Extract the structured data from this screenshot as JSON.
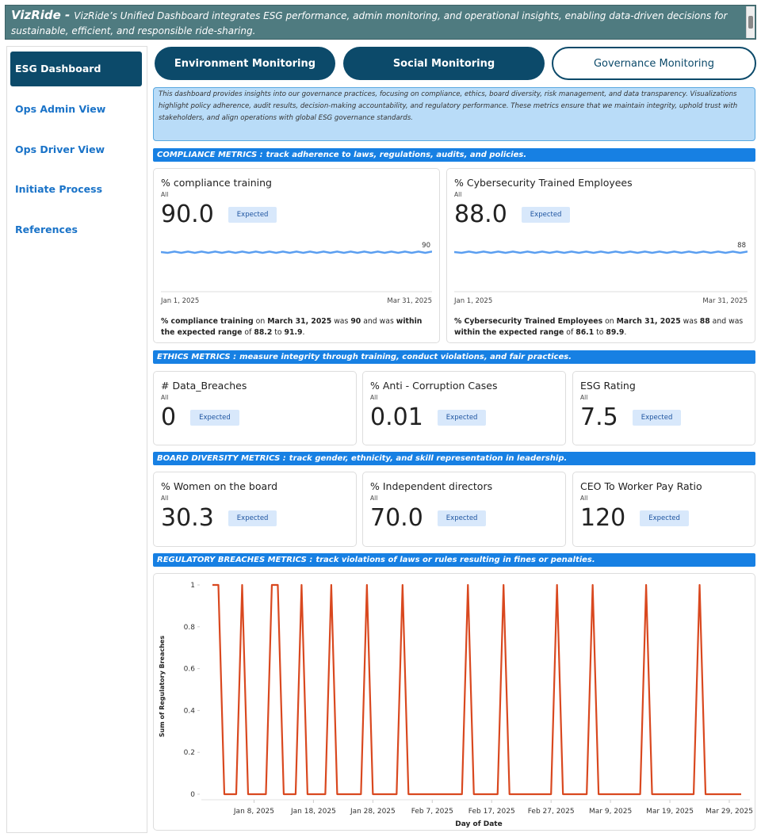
{
  "header": {
    "title": "VizRide -",
    "subtitle": "VizRide’s Unified Dashboard integrates ESG performance, admin monitoring, and operational insights, enabling data-driven decisions for sustainable, efficient, and responsible ride-sharing."
  },
  "sidebar": {
    "items": [
      "ESG Dashboard",
      "Ops Admin View",
      "Ops Driver View",
      "Initiate Process",
      "References"
    ],
    "active": 0
  },
  "tabs": {
    "items": [
      "Environment Monitoring",
      "Social Monitoring",
      "Governance Monitoring"
    ],
    "active": 2
  },
  "intro": "This dashboard provides insights into our governance practices, focusing on compliance, ethics, board diversity, risk management, and data transparency. Visualizations highlight policy adherence, audit results, decision-making accountability, and regulatory performance. These metrics ensure that we maintain integrity, uphold trust with stakeholders, and align operations with global ESG governance standards.",
  "sections": [
    {
      "title": "COMPLIANCE METRICS :",
      "subtitle": "track adherence to laws, regulations, audits, and policies.",
      "cards": [
        {
          "title": "% compliance training",
          "filter": "All",
          "value": "90.0",
          "status": "Expected",
          "sparkline_label": "90",
          "start": "Jan 1, 2025",
          "end": "Mar 31, 2025",
          "description": [
            "% compliance training",
            " on ",
            "March 31, 2025",
            " was ",
            "90",
            " and was ",
            "within the expected range",
            " of ",
            "88.2",
            " to ",
            "91.9",
            "."
          ]
        },
        {
          "title": "% Cybersecurity Trained Employees",
          "filter": "All",
          "value": "88.0",
          "status": "Expected",
          "sparkline_label": "88",
          "start": "Jan 1, 2025",
          "end": "Mar 31, 2025",
          "description": [
            "% Cybersecurity Trained Employees",
            " on ",
            "March 31, 2025",
            " was ",
            "88",
            " and was ",
            "within the expected range",
            " of ",
            "86.1",
            " to ",
            "89.9",
            "."
          ]
        }
      ]
    },
    {
      "title": "ETHICS METRICS :",
      "subtitle": "measure integrity through training, conduct violations, and fair practices.",
      "cards": [
        {
          "title": "# Data_Breaches",
          "filter": "All",
          "value": "0",
          "status": "Expected"
        },
        {
          "title": "% Anti - Corruption Cases",
          "filter": "All",
          "value": "0.01",
          "status": "Expected"
        },
        {
          "title": "ESG Rating",
          "filter": "All",
          "value": "7.5",
          "status": "Expected"
        }
      ]
    },
    {
      "title": "BOARD DIVERSITY METRICS :",
      "subtitle": "track gender, ethnicity, and skill representation in leadership.",
      "cards": [
        {
          "title": "% Women on the board",
          "filter": "All",
          "value": "30.3",
          "status": "Expected"
        },
        {
          "title": "% Independent directors",
          "filter": "All",
          "value": "70.0",
          "status": "Expected"
        },
        {
          "title": "CEO To Worker Pay Ratio",
          "filter": "All",
          "value": "120",
          "status": "Expected"
        }
      ]
    },
    {
      "title": "REGULATORY BREACHES METRICS :",
      "subtitle": "track violations of laws or rules resulting in fines or penalties."
    }
  ],
  "chart_data": {
    "type": "line",
    "color": "#d9481f",
    "x_label": "Day of Date",
    "y_label": "Sum of Regulatory Breaches",
    "x": [
      "2025-01-01",
      "2025-01-02",
      "2025-01-03",
      "2025-01-04",
      "2025-01-05",
      "2025-01-06",
      "2025-01-07",
      "2025-01-08",
      "2025-01-09",
      "2025-01-10",
      "2025-01-11",
      "2025-01-12",
      "2025-01-13",
      "2025-01-14",
      "2025-01-15",
      "2025-01-16",
      "2025-01-17",
      "2025-01-18",
      "2025-01-19",
      "2025-01-20",
      "2025-01-21",
      "2025-01-22",
      "2025-01-23",
      "2025-01-24",
      "2025-01-25",
      "2025-01-26",
      "2025-01-27",
      "2025-01-28",
      "2025-01-29",
      "2025-01-30",
      "2025-01-31",
      "2025-02-01",
      "2025-02-02",
      "2025-02-03",
      "2025-02-04",
      "2025-02-05",
      "2025-02-06",
      "2025-02-07",
      "2025-02-08",
      "2025-02-09",
      "2025-02-10",
      "2025-02-11",
      "2025-02-12",
      "2025-02-13",
      "2025-02-14",
      "2025-02-15",
      "2025-02-16",
      "2025-02-17",
      "2025-02-18",
      "2025-02-19",
      "2025-02-20",
      "2025-02-21",
      "2025-02-22",
      "2025-02-23",
      "2025-02-24",
      "2025-02-25",
      "2025-02-26",
      "2025-02-27",
      "2025-02-28",
      "2025-03-01",
      "2025-03-02",
      "2025-03-03",
      "2025-03-04",
      "2025-03-05",
      "2025-03-06",
      "2025-03-07",
      "2025-03-08",
      "2025-03-09",
      "2025-03-10",
      "2025-03-11",
      "2025-03-12",
      "2025-03-13",
      "2025-03-14",
      "2025-03-15",
      "2025-03-16",
      "2025-03-17",
      "2025-03-18",
      "2025-03-19",
      "2025-03-20",
      "2025-03-21",
      "2025-03-22",
      "2025-03-23",
      "2025-03-24",
      "2025-03-25",
      "2025-03-26",
      "2025-03-27",
      "2025-03-28",
      "2025-03-29",
      "2025-03-30",
      "2025-03-31"
    ],
    "values": [
      1,
      1,
      0,
      0,
      0,
      1,
      0,
      0,
      0,
      0,
      1,
      1,
      0,
      0,
      0,
      1,
      0,
      0,
      0,
      0,
      1,
      0,
      0,
      0,
      0,
      0,
      1,
      0,
      0,
      0,
      0,
      0,
      1,
      0,
      0,
      0,
      0,
      0,
      0,
      0,
      0,
      0,
      0,
      1,
      0,
      0,
      0,
      0,
      0,
      1,
      0,
      0,
      0,
      0,
      0,
      0,
      0,
      0,
      1,
      0,
      0,
      0,
      0,
      0,
      1,
      0,
      0,
      0,
      0,
      0,
      0,
      0,
      0,
      1,
      0,
      0,
      0,
      0,
      0,
      0,
      0,
      0,
      1,
      0,
      0,
      0,
      0,
      0,
      0,
      0
    ],
    "xlim": [
      "2025-01-01",
      "2025-03-31"
    ],
    "xticks": [
      {
        "value": "2025-01-08",
        "label": "Jan 8, 2025"
      },
      {
        "value": "2025-01-18",
        "label": "Jan 18, 2025"
      },
      {
        "value": "2025-01-28",
        "label": "Jan 28, 2025"
      },
      {
        "value": "2025-02-07",
        "label": "Feb 7, 2025"
      },
      {
        "value": "2025-02-17",
        "label": "Feb 17, 2025"
      },
      {
        "value": "2025-02-27",
        "label": "Feb 27, 2025"
      },
      {
        "value": "2025-03-09",
        "label": "Mar 9, 2025"
      },
      {
        "value": "2025-03-19",
        "label": "Mar 19, 2025"
      },
      {
        "value": "2025-03-29",
        "label": "Mar 29, 2025"
      }
    ],
    "ylim": [
      0,
      1
    ],
    "yticks": [
      0,
      0.2,
      0.4,
      0.6,
      0.8,
      1
    ]
  }
}
